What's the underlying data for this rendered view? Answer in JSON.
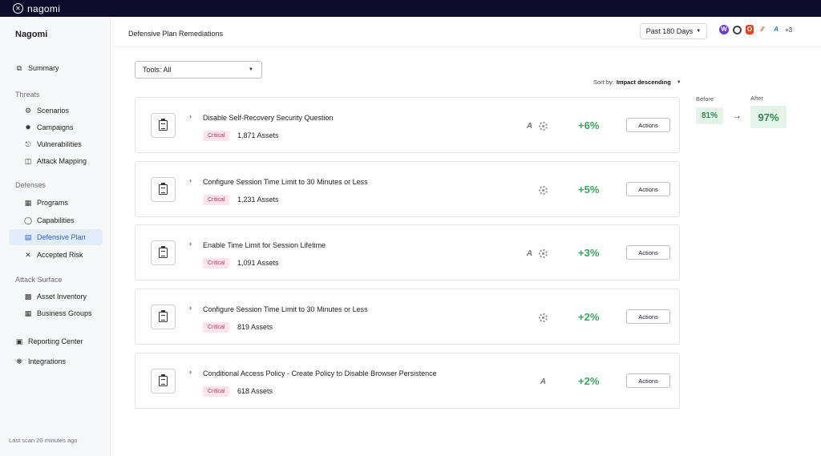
{
  "brand": {
    "name": "nagomi"
  },
  "sidebar": {
    "title": "Nagomi",
    "summary": "Summary",
    "groups": {
      "threats": "Threats",
      "defenses": "Defenses",
      "attack_surface": "Attack Surface"
    },
    "items": {
      "scenarios": "Scenarios",
      "campaigns": "Campaigns",
      "vulnerabilities": "Vulnerabilities",
      "attack_mapping": "Attack Mapping",
      "programs": "Programs",
      "capabilities": "Capabilities",
      "defensive_plan": "Defensive Plan",
      "accepted_risk": "Accepted Risk",
      "asset_inventory": "Asset Inventory",
      "business_groups": "Business Groups",
      "reporting_center": "Reporting Center",
      "integrations": "Integrations"
    },
    "active": "defensive_plan",
    "footer": "Last scan 20 minutes ago"
  },
  "header": {
    "title": "Defensive Plan Remediations",
    "period": "Past 180 Days",
    "tools_more": "+3",
    "tool_icons": [
      "purple-tool-icon",
      "gear-tool-icon",
      "office-icon",
      "red-tool-icon",
      "azure-icon"
    ]
  },
  "filter": {
    "label": "Tools: All"
  },
  "sort": {
    "prefix": "Sort by:",
    "value": "Impact descending"
  },
  "remediations": [
    {
      "title": "Disable Self-Recovery Security Question",
      "severity": "Critical",
      "assets": "1,871 Assets",
      "impact": "+6%",
      "tools": [
        "azure",
        "gear"
      ],
      "action": "Actions"
    },
    {
      "title": "Configure Session Time Limit to 30 Minutes or Less",
      "severity": "Critical",
      "assets": "1,231 Assets",
      "impact": "+5%",
      "tools": [
        "gear"
      ],
      "action": "Actions"
    },
    {
      "title": "Enable Time Limit for Session Lifetime",
      "severity": "Critical",
      "assets": "1,091 Assets",
      "impact": "+3%",
      "tools": [
        "azure",
        "gear"
      ],
      "action": "Actions"
    },
    {
      "title": "Configure Session Time Limit to 30 Minutes or Less",
      "severity": "Critical",
      "assets": "819 Assets",
      "impact": "+2%",
      "tools": [
        "gear"
      ],
      "action": "Actions"
    },
    {
      "title": "Conditional Access Policy - Create Policy to Disable Browser Persistence",
      "severity": "Critical",
      "assets": "618 Assets",
      "impact": "+2%",
      "tools": [
        "azure"
      ],
      "action": "Actions"
    }
  ],
  "comparison": {
    "before_label": "Before",
    "after_label": "After",
    "before": "81%",
    "after": "97%"
  },
  "colors": {
    "topbar": "#0c0d2a",
    "accent": "#2b63d9",
    "impact": "#3aa55d",
    "critical_bg": "#fde4ec",
    "critical_text": "#c2335b"
  }
}
